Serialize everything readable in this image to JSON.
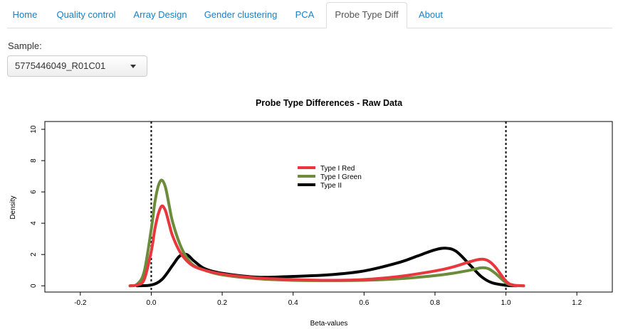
{
  "tabs": [
    {
      "label": "Home",
      "active": false
    },
    {
      "label": "Quality control",
      "active": false
    },
    {
      "label": "Array Design",
      "active": false
    },
    {
      "label": "Gender clustering",
      "active": false
    },
    {
      "label": "PCA",
      "active": false
    },
    {
      "label": "Probe Type Diff",
      "active": true
    },
    {
      "label": "About",
      "active": false
    }
  ],
  "sample": {
    "label": "Sample:",
    "selected": "5775446049_R01C01"
  },
  "chart_data": {
    "type": "line",
    "title": "Probe Type Differences - Raw Data",
    "xlabel": "Beta-values",
    "ylabel": "Density",
    "xlim": [
      -0.3,
      1.3
    ],
    "ylim": [
      -0.4,
      10.5
    ],
    "xticks": [
      "-0.2",
      "0.0",
      "0.2",
      "0.4",
      "0.6",
      "0.8",
      "1.0",
      "1.2"
    ],
    "yticks": [
      "0",
      "2",
      "4",
      "6",
      "8",
      "10"
    ],
    "vlines": [
      0.0,
      1.0
    ],
    "legend_position": "center",
    "series": [
      {
        "name": "Type I Red",
        "color": "#e8373d",
        "x": [
          -0.06,
          -0.04,
          -0.02,
          0.0,
          0.01,
          0.02,
          0.03,
          0.04,
          0.05,
          0.06,
          0.08,
          0.1,
          0.12,
          0.15,
          0.2,
          0.3,
          0.4,
          0.5,
          0.6,
          0.7,
          0.8,
          0.85,
          0.9,
          0.93,
          0.95,
          0.97,
          1.0,
          1.02,
          1.05
        ],
        "y": [
          0.0,
          0.05,
          0.4,
          2.2,
          3.6,
          4.6,
          5.1,
          4.8,
          4.0,
          3.2,
          2.2,
          1.6,
          1.25,
          1.0,
          0.75,
          0.5,
          0.4,
          0.35,
          0.4,
          0.6,
          0.95,
          1.2,
          1.55,
          1.7,
          1.6,
          1.2,
          0.3,
          0.05,
          0.0
        ]
      },
      {
        "name": "Type I Green",
        "color": "#6b8c3a",
        "x": [
          -0.06,
          -0.04,
          -0.02,
          0.0,
          0.01,
          0.02,
          0.03,
          0.04,
          0.05,
          0.06,
          0.08,
          0.1,
          0.12,
          0.15,
          0.2,
          0.3,
          0.4,
          0.5,
          0.6,
          0.7,
          0.8,
          0.85,
          0.9,
          0.93,
          0.95,
          0.97,
          1.0,
          1.02,
          1.05
        ],
        "y": [
          0.0,
          0.1,
          0.9,
          3.6,
          5.3,
          6.4,
          6.75,
          6.3,
          5.2,
          4.1,
          2.7,
          1.8,
          1.3,
          1.0,
          0.7,
          0.45,
          0.35,
          0.33,
          0.35,
          0.45,
          0.65,
          0.8,
          1.0,
          1.15,
          1.1,
          0.8,
          0.2,
          0.03,
          0.0
        ]
      },
      {
        "name": "Type II",
        "color": "#000000",
        "x": [
          -0.04,
          0.0,
          0.03,
          0.06,
          0.08,
          0.1,
          0.12,
          0.15,
          0.2,
          0.3,
          0.4,
          0.5,
          0.6,
          0.7,
          0.75,
          0.8,
          0.83,
          0.86,
          0.9,
          0.93,
          0.96,
          1.0,
          1.03
        ],
        "y": [
          0.0,
          0.05,
          0.4,
          1.3,
          1.9,
          2.0,
          1.6,
          1.1,
          0.8,
          0.55,
          0.6,
          0.7,
          0.95,
          1.5,
          1.9,
          2.3,
          2.4,
          2.2,
          1.3,
          0.6,
          0.2,
          0.03,
          0.0
        ]
      }
    ]
  }
}
